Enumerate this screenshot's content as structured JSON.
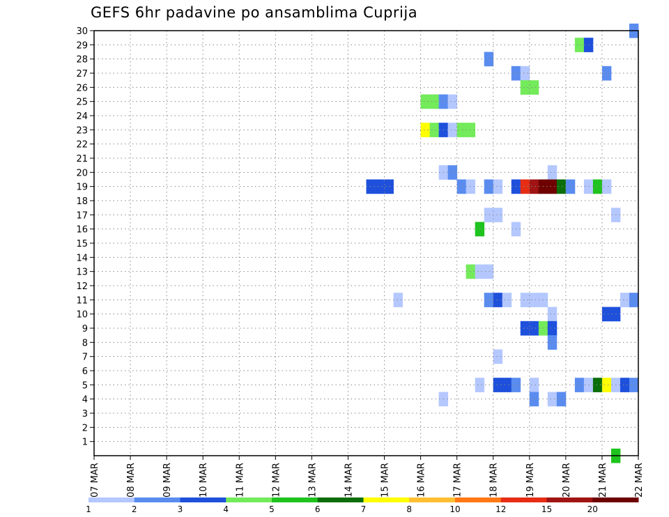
{
  "chart_data": {
    "type": "heatmap",
    "title": "GEFS 6hr padavine po ansamblima Cuprija",
    "xlabel": "",
    "ylabel": "",
    "x_tick_labels": [
      "07 MAR",
      "08 MAR",
      "09 MAR",
      "10 MAR",
      "11 MAR",
      "12 MAR",
      "13 MAR",
      "14 MAR",
      "15 MAR",
      "16 MAR",
      "17 MAR",
      "18 MAR",
      "19 MAR",
      "20 MAR",
      "21 MAR",
      "22 MAR"
    ],
    "xlim_days": [
      0,
      15
    ],
    "y_tick_labels": [
      "1",
      "2",
      "3",
      "4",
      "5",
      "6",
      "7",
      "8",
      "9",
      "10",
      "11",
      "12",
      "13",
      "14",
      "15",
      "16",
      "17",
      "18",
      "19",
      "20",
      "21",
      "22",
      "23",
      "24",
      "25",
      "26",
      "27",
      "28",
      "29",
      "30"
    ],
    "ylim": [
      0,
      30
    ],
    "grid": true,
    "legend": {
      "placement": "bottom",
      "labels": [
        "1",
        "2",
        "3",
        "4",
        "5",
        "6",
        "7",
        "8",
        "10",
        "12",
        "15",
        "20"
      ],
      "colors": [
        "#b4c8ff",
        "#5a8cf0",
        "#1e50dc",
        "#73eb5a",
        "#1ec31e",
        "#0a6e0a",
        "#ffff00",
        "#ffbe32",
        "#ff7814",
        "#e62d14",
        "#a01414",
        "#6e0000"
      ]
    },
    "cells": [
      {
        "day": 14.75,
        "y": 30,
        "v": 2
      },
      {
        "day": 13.25,
        "y": 29,
        "v": 4
      },
      {
        "day": 13.5,
        "y": 29,
        "v": 3
      },
      {
        "day": 10.75,
        "y": 28,
        "v": 2
      },
      {
        "day": 11.5,
        "y": 27,
        "v": 2
      },
      {
        "day": 11.75,
        "y": 27,
        "v": 1
      },
      {
        "day": 14.0,
        "y": 27,
        "v": 2
      },
      {
        "day": 11.75,
        "y": 26,
        "v": 4
      },
      {
        "day": 12.0,
        "y": 26,
        "v": 4
      },
      {
        "day": 9.0,
        "y": 25,
        "v": 4
      },
      {
        "day": 9.25,
        "y": 25,
        "v": 4
      },
      {
        "day": 9.5,
        "y": 25,
        "v": 2
      },
      {
        "day": 9.75,
        "y": 25,
        "v": 1
      },
      {
        "day": 9.0,
        "y": 23,
        "v": 7
      },
      {
        "day": 9.25,
        "y": 23,
        "v": 4
      },
      {
        "day": 9.5,
        "y": 23,
        "v": 3
      },
      {
        "day": 9.75,
        "y": 23,
        "v": 1
      },
      {
        "day": 10.0,
        "y": 23,
        "v": 4
      },
      {
        "day": 10.25,
        "y": 23,
        "v": 4
      },
      {
        "day": 9.5,
        "y": 20,
        "v": 1
      },
      {
        "day": 9.75,
        "y": 20,
        "v": 2
      },
      {
        "day": 12.5,
        "y": 20,
        "v": 1
      },
      {
        "day": 7.5,
        "y": 19,
        "v": 3
      },
      {
        "day": 7.75,
        "y": 19,
        "v": 3
      },
      {
        "day": 8.0,
        "y": 19,
        "v": 3
      },
      {
        "day": 10.0,
        "y": 19,
        "v": 2
      },
      {
        "day": 10.25,
        "y": 19,
        "v": 1
      },
      {
        "day": 10.75,
        "y": 19,
        "v": 2
      },
      {
        "day": 11.0,
        "y": 19,
        "v": 1
      },
      {
        "day": 11.5,
        "y": 19,
        "v": 3
      },
      {
        "day": 11.75,
        "y": 19,
        "v": 12
      },
      {
        "day": 12.0,
        "y": 19,
        "v": 15
      },
      {
        "day": 12.25,
        "y": 19,
        "v": 20
      },
      {
        "day": 12.5,
        "y": 19,
        "v": 20
      },
      {
        "day": 12.75,
        "y": 19,
        "v": 6
      },
      {
        "day": 13.0,
        "y": 19,
        "v": 2
      },
      {
        "day": 13.5,
        "y": 19,
        "v": 1
      },
      {
        "day": 13.75,
        "y": 19,
        "v": 5
      },
      {
        "day": 14.0,
        "y": 19,
        "v": 1
      },
      {
        "day": 10.75,
        "y": 17,
        "v": 1
      },
      {
        "day": 11.0,
        "y": 17,
        "v": 1
      },
      {
        "day": 14.25,
        "y": 17,
        "v": 1
      },
      {
        "day": 10.5,
        "y": 16,
        "v": 5
      },
      {
        "day": 11.5,
        "y": 16,
        "v": 1
      },
      {
        "day": 10.25,
        "y": 13,
        "v": 4
      },
      {
        "day": 10.5,
        "y": 13,
        "v": 1
      },
      {
        "day": 10.75,
        "y": 13,
        "v": 1
      },
      {
        "day": 8.25,
        "y": 11,
        "v": 1
      },
      {
        "day": 10.75,
        "y": 11,
        "v": 2
      },
      {
        "day": 11.0,
        "y": 11,
        "v": 3
      },
      {
        "day": 11.25,
        "y": 11,
        "v": 1
      },
      {
        "day": 11.75,
        "y": 11,
        "v": 1
      },
      {
        "day": 12.0,
        "y": 11,
        "v": 1
      },
      {
        "day": 12.25,
        "y": 11,
        "v": 1
      },
      {
        "day": 14.5,
        "y": 11,
        "v": 1
      },
      {
        "day": 14.75,
        "y": 11,
        "v": 2
      },
      {
        "day": 12.5,
        "y": 10,
        "v": 1
      },
      {
        "day": 14.0,
        "y": 10,
        "v": 3
      },
      {
        "day": 14.25,
        "y": 10,
        "v": 3
      },
      {
        "day": 11.75,
        "y": 9,
        "v": 3
      },
      {
        "day": 12.0,
        "y": 9,
        "v": 3
      },
      {
        "day": 12.25,
        "y": 9,
        "v": 4
      },
      {
        "day": 12.5,
        "y": 9,
        "v": 3
      },
      {
        "day": 12.5,
        "y": 8,
        "v": 2
      },
      {
        "day": 11.0,
        "y": 7,
        "v": 1
      },
      {
        "day": 10.5,
        "y": 5,
        "v": 1
      },
      {
        "day": 11.0,
        "y": 5,
        "v": 3
      },
      {
        "day": 11.25,
        "y": 5,
        "v": 3
      },
      {
        "day": 11.5,
        "y": 5,
        "v": 2
      },
      {
        "day": 12.0,
        "y": 5,
        "v": 1
      },
      {
        "day": 13.25,
        "y": 5,
        "v": 2
      },
      {
        "day": 13.5,
        "y": 5,
        "v": 1
      },
      {
        "day": 13.75,
        "y": 5,
        "v": 6
      },
      {
        "day": 14.0,
        "y": 5,
        "v": 7
      },
      {
        "day": 14.25,
        "y": 5,
        "v": 1
      },
      {
        "day": 14.5,
        "y": 5,
        "v": 3
      },
      {
        "day": 14.75,
        "y": 5,
        "v": 2
      },
      {
        "day": 9.5,
        "y": 4,
        "v": 1
      },
      {
        "day": 12.0,
        "y": 4,
        "v": 2
      },
      {
        "day": 12.5,
        "y": 4,
        "v": 1
      },
      {
        "day": 12.75,
        "y": 4,
        "v": 2
      },
      {
        "day": 14.25,
        "y": 0,
        "v": 5
      }
    ]
  }
}
